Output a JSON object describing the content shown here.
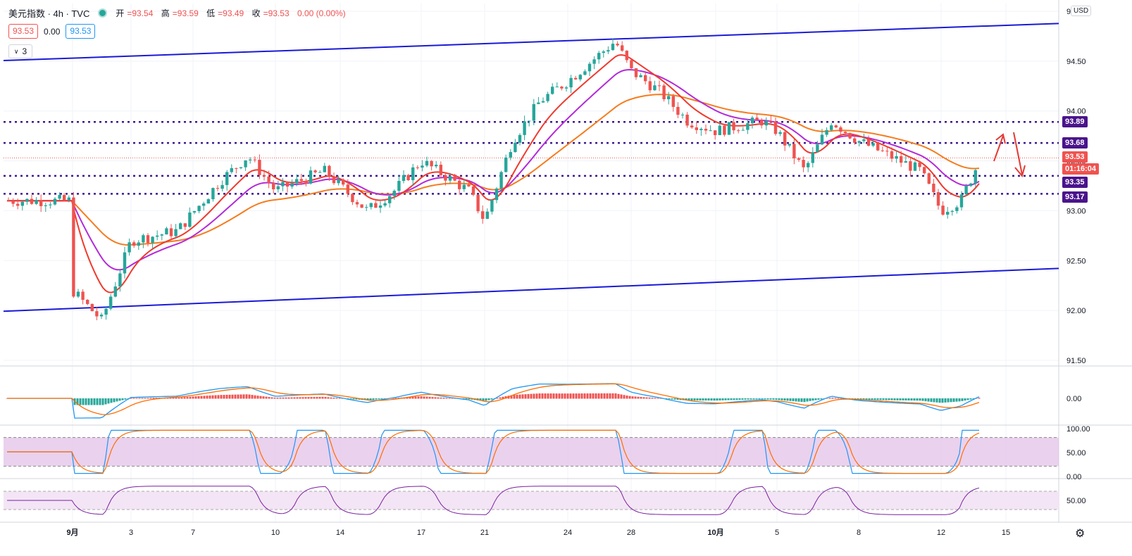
{
  "header": {
    "title": "美元指数 · 4h · TVC",
    "ohlc": [
      {
        "k": "开",
        "v": "=93.54"
      },
      {
        "k": "高",
        "v": "=93.59"
      },
      {
        "k": "低",
        "v": "=93.49"
      },
      {
        "k": "收",
        "v": "=93.53"
      },
      {
        "k": "",
        "v": "0.00 (0.00%)"
      }
    ],
    "bid": "93.53",
    "spread": "0.00",
    "ask": "93.53",
    "indicators_count": "3",
    "currency": "USD"
  },
  "price_axis": {
    "ticks": [
      "95.00",
      "94.50",
      "94.00",
      "93.50",
      "93.00",
      "92.50",
      "92.00",
      "91.50"
    ],
    "labels": [
      {
        "text": "93.89",
        "color": "#4a148c"
      },
      {
        "text": "93.68",
        "color": "#4a148c"
      },
      {
        "text": "93.53",
        "color": "#ef5350"
      },
      {
        "text": "01:16:04",
        "color": "#ef5350"
      },
      {
        "text": "93.35",
        "color": "#4a148c"
      },
      {
        "text": "93.17",
        "color": "#4a148c"
      }
    ]
  },
  "macd_axis": {
    "ticks": [
      "0.00"
    ]
  },
  "stoch_axis": {
    "ticks": [
      "100.00",
      "50.00",
      "0.00"
    ]
  },
  "rsi_axis": {
    "ticks": [
      "50.00"
    ]
  },
  "time_axis": {
    "labels": [
      "9月",
      "3",
      "7",
      "10",
      "14",
      "17",
      "21",
      "24",
      "28",
      "10月",
      "5",
      "8",
      "12",
      "15"
    ]
  },
  "colors": {
    "up": "#26a69a",
    "down": "#ef5350",
    "channel": "#1a1ad6",
    "hline": "#3d1a8f",
    "ma_red": "#ef3a2e",
    "ma_purple": "#b32ad9",
    "ma_orange": "#f57c1f",
    "macd_line": "#2196f3",
    "signal_line": "#ff6d00",
    "stoch_bg": "#e1bee7",
    "rsi_line": "#7b1fa2",
    "arrow": "#e53935"
  },
  "chart_data": {
    "type": "candlestick",
    "timeframe": "4h",
    "y_range": [
      91.5,
      95.0
    ],
    "horizontal_levels": [
      93.89,
      93.68,
      93.35,
      93.17
    ],
    "last_price": 93.53,
    "channel": {
      "upper": [
        {
          "date": "09-01",
          "y": 94.53
        },
        {
          "date": "10-14",
          "y": 94.85
        }
      ],
      "lower": [
        {
          "date": "09-01",
          "y": 92.02
        },
        {
          "date": "10-14",
          "y": 92.39
        }
      ]
    },
    "candles_approx_close": [
      {
        "date": "08-31",
        "close": 93.1
      },
      {
        "date": "09-01",
        "close": 92.2
      },
      {
        "date": "09-02",
        "close": 91.9
      },
      {
        "date": "09-03",
        "close": 92.7
      },
      {
        "date": "09-06",
        "close": 92.8
      },
      {
        "date": "09-08",
        "close": 93.3
      },
      {
        "date": "09-09",
        "close": 93.55
      },
      {
        "date": "09-10",
        "close": 93.2
      },
      {
        "date": "09-13",
        "close": 93.4
      },
      {
        "date": "09-15",
        "close": 93.0
      },
      {
        "date": "09-16",
        "close": 93.2
      },
      {
        "date": "09-17",
        "close": 93.5
      },
      {
        "date": "09-20",
        "close": 93.2
      },
      {
        "date": "09-21",
        "close": 92.9
      },
      {
        "date": "09-22",
        "close": 93.7
      },
      {
        "date": "09-23",
        "close": 94.1
      },
      {
        "date": "09-24",
        "close": 94.3
      },
      {
        "date": "09-27",
        "close": 94.7
      },
      {
        "date": "09-28",
        "close": 94.4
      },
      {
        "date": "09-29",
        "close": 94.2
      },
      {
        "date": "09-30",
        "close": 93.9
      },
      {
        "date": "10-01",
        "close": 93.8
      },
      {
        "date": "10-04",
        "close": 93.9
      },
      {
        "date": "10-05",
        "close": 93.8
      },
      {
        "date": "10-06",
        "close": 93.4
      },
      {
        "date": "10-07",
        "close": 93.9
      },
      {
        "date": "10-08",
        "close": 93.7
      },
      {
        "date": "10-11",
        "close": 93.4
      },
      {
        "date": "10-12",
        "close": 93.0
      },
      {
        "date": "10-13",
        "close": 93.1
      },
      {
        "date": "10-14",
        "close": 93.53
      }
    ],
    "oscillators": {
      "macd_zero": 0.0,
      "stoch_levels": [
        100,
        80,
        50,
        20,
        0
      ],
      "rsi_mid": 50
    }
  }
}
